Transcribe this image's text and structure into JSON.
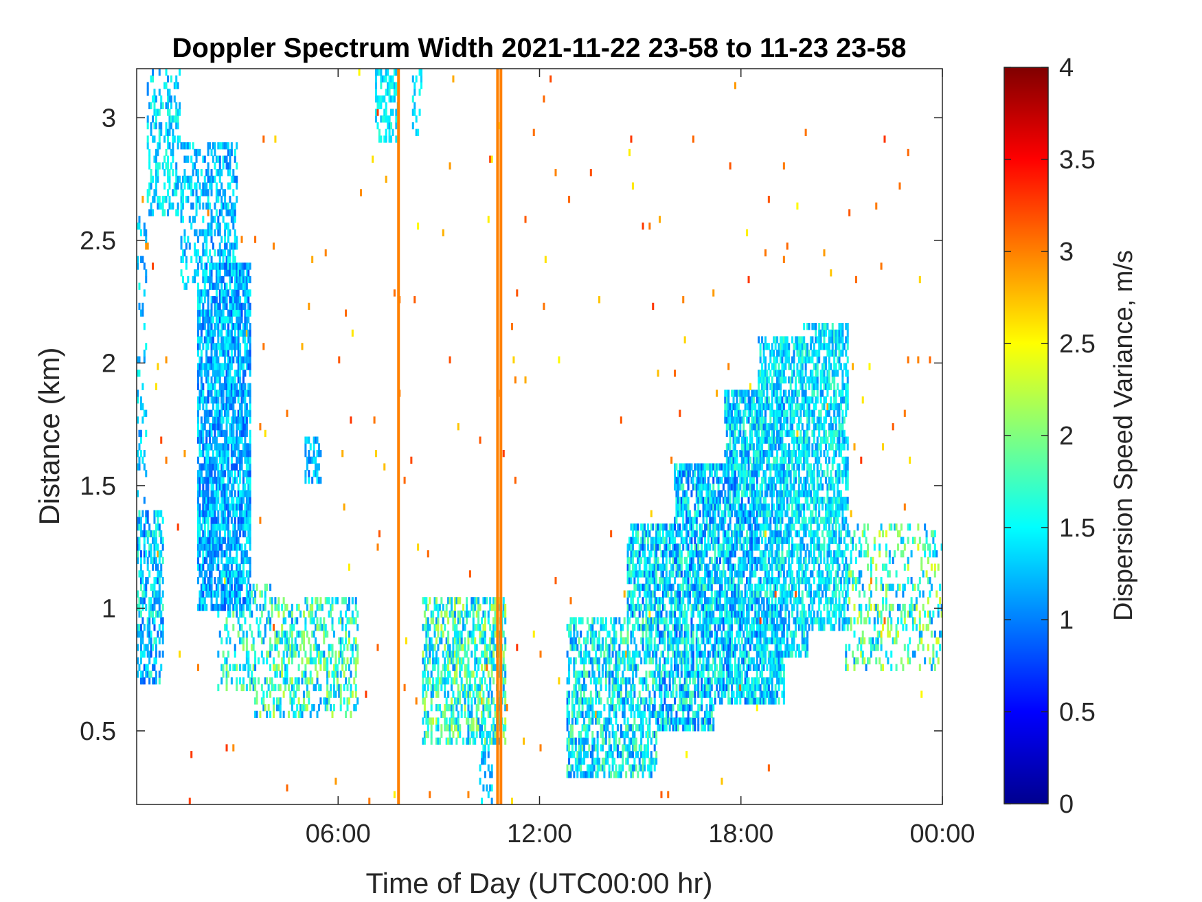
{
  "chart_data": {
    "type": "heatmap",
    "title": "Doppler Spectrum Width 2021-11-22 23-58 to 11-23 23-58",
    "xlabel": "Time of Day (UTC00:00 hr)",
    "ylabel": "Distance (km)",
    "x_unit": "hours",
    "xlim": [
      0,
      24
    ],
    "ylim": [
      0.2,
      3.2
    ],
    "x_ticks": [
      {
        "value": 6,
        "label": "06:00"
      },
      {
        "value": 12,
        "label": "12:00"
      },
      {
        "value": 18,
        "label": "18:00"
      },
      {
        "value": 24,
        "label": "00:00"
      }
    ],
    "y_ticks": [
      {
        "value": 0.5,
        "label": "0.5"
      },
      {
        "value": 1,
        "label": "1"
      },
      {
        "value": 1.5,
        "label": "1.5"
      },
      {
        "value": 2,
        "label": "2"
      },
      {
        "value": 2.5,
        "label": "2.5"
      },
      {
        "value": 3,
        "label": "3"
      }
    ],
    "colorbar": {
      "label": "Dispersion Speed Variance, m/s",
      "colormap": "jet",
      "clim": [
        0,
        4
      ],
      "ticks": [
        {
          "value": 0,
          "label": "0"
        },
        {
          "value": 0.5,
          "label": "0.5"
        },
        {
          "value": 1,
          "label": "1"
        },
        {
          "value": 1.5,
          "label": "1.5"
        },
        {
          "value": 2,
          "label": "2"
        },
        {
          "value": 2.5,
          "label": "2.5"
        },
        {
          "value": 3,
          "label": "3"
        },
        {
          "value": 3.5,
          "label": "3.5"
        },
        {
          "value": 4,
          "label": "4"
        }
      ]
    },
    "grid": false,
    "high_variance_lines": [
      {
        "time_hr": 7.8,
        "y_range": [
          0.2,
          3.2
        ],
        "value": 3.0
      },
      {
        "time_hr": 10.75,
        "y_range": [
          0.2,
          3.2
        ],
        "value": 3.0
      },
      {
        "time_hr": 10.85,
        "y_range": [
          0.2,
          3.2
        ],
        "value": 3.0
      }
    ],
    "regions": [
      {
        "t": [
          0.0,
          0.8
        ],
        "h": [
          0.7,
          1.4
        ],
        "v": [
          0.8,
          1.8
        ],
        "density": 0.55
      },
      {
        "t": [
          0.0,
          0.3
        ],
        "h": [
          1.4,
          2.6
        ],
        "v": [
          1.0,
          1.6
        ],
        "density": 0.25
      },
      {
        "t": [
          0.3,
          1.3
        ],
        "h": [
          2.6,
          3.2
        ],
        "v": [
          1.0,
          1.7
        ],
        "density": 0.35
      },
      {
        "t": [
          1.3,
          2.0
        ],
        "h": [
          2.3,
          2.9
        ],
        "v": [
          1.0,
          1.6
        ],
        "density": 0.35
      },
      {
        "t": [
          1.8,
          3.4
        ],
        "h": [
          1.0,
          2.4
        ],
        "v": [
          0.8,
          1.6
        ],
        "density": 0.75
      },
      {
        "t": [
          2.0,
          3.0
        ],
        "h": [
          2.4,
          2.9
        ],
        "v": [
          0.9,
          1.6
        ],
        "density": 0.45
      },
      {
        "t": [
          2.4,
          4.0
        ],
        "h": [
          0.65,
          1.1
        ],
        "v": [
          1.0,
          2.2
        ],
        "density": 0.35
      },
      {
        "t": [
          3.5,
          6.6
        ],
        "h": [
          0.55,
          1.05
        ],
        "v": [
          1.0,
          2.3
        ],
        "density": 0.4
      },
      {
        "t": [
          5.0,
          5.5
        ],
        "h": [
          1.5,
          1.7
        ],
        "v": [
          0.9,
          1.5
        ],
        "density": 0.55
      },
      {
        "t": [
          7.1,
          7.8
        ],
        "h": [
          2.9,
          3.2
        ],
        "v": [
          1.2,
          1.7
        ],
        "density": 0.5
      },
      {
        "t": [
          8.2,
          8.5
        ],
        "h": [
          2.9,
          3.2
        ],
        "v": [
          1.2,
          1.6
        ],
        "density": 0.3
      },
      {
        "t": [
          8.5,
          11.0
        ],
        "h": [
          0.45,
          1.05
        ],
        "v": [
          1.0,
          2.3
        ],
        "density": 0.55
      },
      {
        "t": [
          10.2,
          10.6
        ],
        "h": [
          0.2,
          0.45
        ],
        "v": [
          1.0,
          1.6
        ],
        "density": 0.3
      },
      {
        "t": [
          12.8,
          15.5
        ],
        "h": [
          0.3,
          0.95
        ],
        "v": [
          0.9,
          2.0
        ],
        "density": 0.55
      },
      {
        "t": [
          14.6,
          17.2
        ],
        "h": [
          0.5,
          1.35
        ],
        "v": [
          0.8,
          1.9
        ],
        "density": 0.7
      },
      {
        "t": [
          16.0,
          18.5
        ],
        "h": [
          0.6,
          1.6
        ],
        "v": [
          0.8,
          1.8
        ],
        "density": 0.75
      },
      {
        "t": [
          17.5,
          19.3
        ],
        "h": [
          0.6,
          1.9
        ],
        "v": [
          0.9,
          1.8
        ],
        "density": 0.75
      },
      {
        "t": [
          18.5,
          20.0
        ],
        "h": [
          0.8,
          2.1
        ],
        "v": [
          1.0,
          1.8
        ],
        "density": 0.65
      },
      {
        "t": [
          19.8,
          21.2
        ],
        "h": [
          0.9,
          2.15
        ],
        "v": [
          1.0,
          1.8
        ],
        "density": 0.6
      },
      {
        "t": [
          21.0,
          24.0
        ],
        "h": [
          0.75,
          1.35
        ],
        "v": [
          1.0,
          2.4
        ],
        "density": 0.25
      }
    ],
    "sparse_background": {
      "v": [
        2.5,
        3.3
      ],
      "density": 0.004
    }
  }
}
